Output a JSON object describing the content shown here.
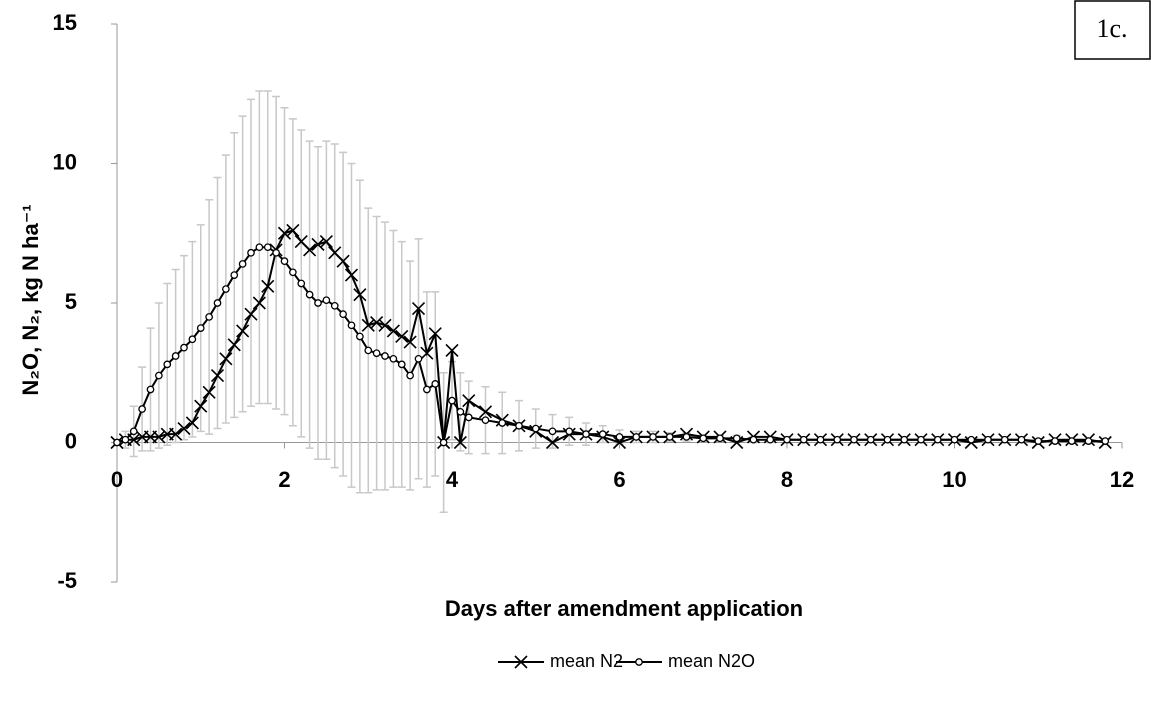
{
  "chart_data": {
    "type": "line",
    "title": "1c.",
    "x_label": "Days after amendment application",
    "y_label": "N₂O, N₂, kg N ha⁻¹",
    "x": [
      0,
      0.1,
      0.2,
      0.3,
      0.4,
      0.5,
      0.6,
      0.7,
      0.8,
      0.9,
      1.0,
      1.1,
      1.2,
      1.3,
      1.4,
      1.5,
      1.6,
      1.7,
      1.8,
      1.9,
      2.0,
      2.1,
      2.2,
      2.3,
      2.4,
      2.5,
      2.6,
      2.7,
      2.8,
      2.9,
      3.0,
      3.1,
      3.2,
      3.3,
      3.4,
      3.5,
      3.6,
      3.7,
      3.8,
      3.9,
      4.0,
      4.1,
      4.2,
      4.4,
      4.6,
      4.8,
      5.0,
      5.2,
      5.4,
      5.6,
      5.8,
      6.0,
      6.2,
      6.4,
      6.6,
      6.8,
      7.0,
      7.2,
      7.4,
      7.6,
      7.8,
      8.0,
      8.2,
      8.4,
      8.6,
      8.8,
      9.0,
      9.2,
      9.4,
      9.6,
      9.8,
      10.0,
      10.2,
      10.4,
      10.6,
      10.8,
      11.0,
      11.2,
      11.4,
      11.6,
      11.8
    ],
    "series": [
      {
        "name": "mean N2",
        "color": "#000000",
        "marker": "x",
        "values": [
          0,
          0.1,
          0.1,
          0.2,
          0.2,
          0.2,
          0.3,
          0.3,
          0.5,
          0.7,
          1.3,
          1.8,
          2.4,
          3.0,
          3.5,
          4.0,
          4.6,
          5.0,
          5.6,
          6.9,
          7.5,
          7.6,
          7.2,
          6.9,
          7.1,
          7.2,
          6.8,
          6.5,
          6.0,
          5.3,
          4.2,
          4.3,
          4.2,
          4.0,
          3.8,
          3.6,
          4.8,
          3.2,
          3.9,
          0,
          3.3,
          0,
          1.5,
          1.1,
          0.8,
          0.6,
          0.4,
          0,
          0.3,
          0.3,
          0.2,
          0,
          0.2,
          0.2,
          0.2,
          0.3,
          0.2,
          0.2,
          0,
          0.2,
          0.2,
          0.1,
          0.1,
          0.1,
          0.1,
          0.1,
          0.1,
          0.1,
          0.1,
          0.1,
          0.1,
          0.1,
          0,
          0.1,
          0.1,
          0.1,
          0,
          0.1,
          0.1,
          0.1,
          0
        ]
      },
      {
        "name": "mean N2O",
        "color": "#000000",
        "marker": "circle",
        "error_color": "#c8c8c8",
        "values": [
          0,
          0.1,
          0.4,
          1.2,
          1.9,
          2.4,
          2.8,
          3.1,
          3.4,
          3.7,
          4.1,
          4.5,
          5.0,
          5.5,
          6.0,
          6.4,
          6.8,
          7.0,
          7.0,
          6.8,
          6.5,
          6.1,
          5.7,
          5.3,
          5.0,
          5.1,
          4.9,
          4.6,
          4.2,
          3.8,
          3.3,
          3.2,
          3.1,
          3.0,
          2.8,
          2.4,
          3.0,
          1.9,
          2.1,
          0,
          1.5,
          1.1,
          0.9,
          0.8,
          0.7,
          0.6,
          0.5,
          0.4,
          0.4,
          0.3,
          0.3,
          0.2,
          0.2,
          0.2,
          0.2,
          0.2,
          0.15,
          0.15,
          0.15,
          0.1,
          0.1,
          0.1,
          0.1,
          0.1,
          0.1,
          0.1,
          0.1,
          0.1,
          0.1,
          0.1,
          0.1,
          0.1,
          0.1,
          0.1,
          0.1,
          0.1,
          0.05,
          0.05,
          0.05,
          0.05,
          0.05
        ],
        "errors": [
          0,
          0.3,
          0.9,
          1.5,
          2.2,
          2.6,
          2.9,
          3.1,
          3.3,
          3.5,
          3.7,
          4.2,
          4.5,
          4.8,
          5.1,
          5.3,
          5.5,
          5.6,
          5.6,
          5.6,
          5.5,
          5.5,
          5.5,
          5.5,
          5.6,
          5.7,
          5.8,
          5.8,
          5.8,
          5.6,
          5.1,
          4.9,
          4.8,
          4.6,
          4.4,
          4.1,
          4.3,
          3.5,
          3.3,
          2.5,
          1.4,
          1.4,
          1.3,
          1.2,
          1.1,
          0.9,
          0.7,
          0.6,
          0.5,
          0.4,
          0.3,
          0.25,
          0.2,
          0.2,
          0.15,
          0.15,
          0.1,
          0.1,
          0.1,
          0.1,
          0.1,
          0.1,
          0.05,
          0.05,
          0.05,
          0.05,
          0.05,
          0.05,
          0.05,
          0.05,
          0.05,
          0.05,
          0.05,
          0.05,
          0.05,
          0.05,
          0.05,
          0.05,
          0.05,
          0.05,
          0.05
        ]
      }
    ],
    "xlim": [
      0,
      12
    ],
    "xticks": [
      0,
      2,
      4,
      6,
      8,
      10,
      12
    ],
    "ylim": [
      -5,
      15
    ],
    "yticks": [
      -5,
      0,
      5,
      10,
      15
    ],
    "grid": false,
    "legend": "bottom"
  }
}
